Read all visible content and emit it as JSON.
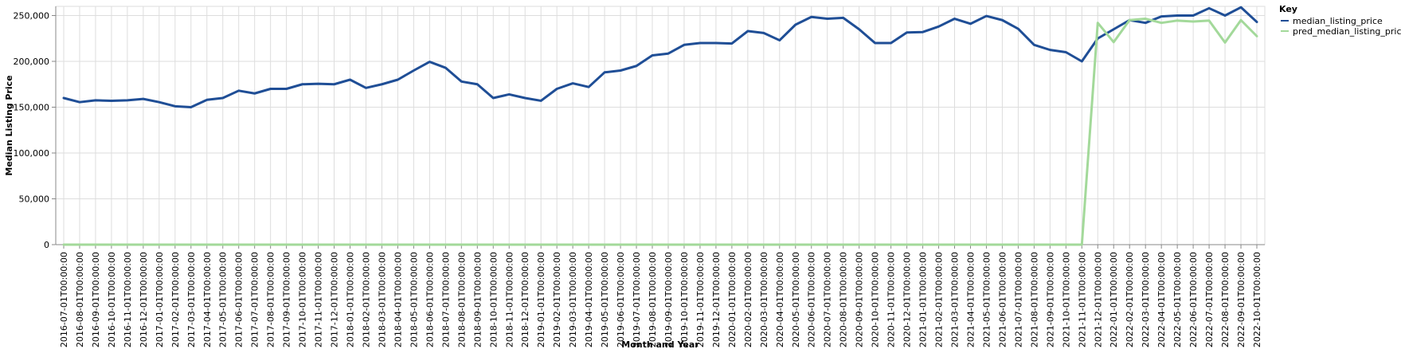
{
  "chart_data": {
    "type": "line",
    "xlabel": "Month and Year",
    "ylabel": "Median Listing Price",
    "ylim": [
      0,
      260000
    ],
    "yticks": [
      0,
      50000,
      100000,
      150000,
      200000,
      250000
    ],
    "ytick_labels": [
      "0",
      "50,000",
      "100,000",
      "150,000",
      "200,000",
      "250,000"
    ],
    "grid": true,
    "legend": {
      "title": "Key",
      "position": "top-right"
    },
    "x": [
      "2016-07-01T00:00:00",
      "2016-08-01T00:00:00",
      "2016-09-01T00:00:00",
      "2016-10-01T00:00:00",
      "2016-11-01T00:00:00",
      "2016-12-01T00:00:00",
      "2017-01-01T00:00:00",
      "2017-02-01T00:00:00",
      "2017-03-01T00:00:00",
      "2017-04-01T00:00:00",
      "2017-05-01T00:00:00",
      "2017-06-01T00:00:00",
      "2017-07-01T00:00:00",
      "2017-08-01T00:00:00",
      "2017-09-01T00:00:00",
      "2017-10-01T00:00:00",
      "2017-11-01T00:00:00",
      "2017-12-01T00:00:00",
      "2018-01-01T00:00:00",
      "2018-02-01T00:00:00",
      "2018-03-01T00:00:00",
      "2018-04-01T00:00:00",
      "2018-05-01T00:00:00",
      "2018-06-01T00:00:00",
      "2018-07-01T00:00:00",
      "2018-08-01T00:00:00",
      "2018-09-01T00:00:00",
      "2018-10-01T00:00:00",
      "2018-11-01T00:00:00",
      "2018-12-01T00:00:00",
      "2019-01-01T00:00:00",
      "2019-02-01T00:00:00",
      "2019-03-01T00:00:00",
      "2019-04-01T00:00:00",
      "2019-05-01T00:00:00",
      "2019-06-01T00:00:00",
      "2019-07-01T00:00:00",
      "2019-08-01T00:00:00",
      "2019-09-01T00:00:00",
      "2019-10-01T00:00:00",
      "2019-11-01T00:00:00",
      "2019-12-01T00:00:00",
      "2020-01-01T00:00:00",
      "2020-02-01T00:00:00",
      "2020-03-01T00:00:00",
      "2020-04-01T00:00:00",
      "2020-05-01T00:00:00",
      "2020-06-01T00:00:00",
      "2020-07-01T00:00:00",
      "2020-08-01T00:00:00",
      "2020-09-01T00:00:00",
      "2020-10-01T00:00:00",
      "2020-11-01T00:00:00",
      "2020-12-01T00:00:00",
      "2021-01-01T00:00:00",
      "2021-02-01T00:00:00",
      "2021-03-01T00:00:00",
      "2021-04-01T00:00:00",
      "2021-05-01T00:00:00",
      "2021-06-01T00:00:00",
      "2021-07-01T00:00:00",
      "2021-08-01T00:00:00",
      "2021-09-01T00:00:00",
      "2021-10-01T00:00:00",
      "2021-11-01T00:00:00",
      "2021-12-01T00:00:00",
      "2022-01-01T00:00:00",
      "2022-02-01T00:00:00",
      "2022-03-01T00:00:00",
      "2022-04-01T00:00:00",
      "2022-05-01T00:00:00",
      "2022-06-01T00:00:00",
      "2022-07-01T00:00:00",
      "2022-08-01T00:00:00",
      "2022-09-01T00:00:00",
      "2022-10-01T00:00:00"
    ],
    "series": [
      {
        "name": "median_listing_price",
        "color": "#1f4e96",
        "values": [
          160000,
          155500,
          157500,
          157000,
          157500,
          159000,
          155500,
          151000,
          150000,
          158000,
          160000,
          168000,
          165000,
          170000,
          170000,
          175000,
          175500,
          175000,
          180000,
          171000,
          175000,
          180000,
          190000,
          199500,
          193000,
          178000,
          175000,
          160000,
          164000,
          160000,
          157000,
          170000,
          176000,
          172000,
          188000,
          190000,
          195000,
          206500,
          208500,
          218000,
          220000,
          220000,
          219500,
          233000,
          231000,
          223000,
          240000,
          248500,
          246500,
          247500,
          235000,
          220000,
          220000,
          231500,
          232000,
          238000,
          246500,
          241000,
          249500,
          245000,
          235500,
          218000,
          212500,
          210000,
          200000,
          225000,
          235000,
          245000,
          242000,
          249000,
          250000,
          250000,
          258000,
          250000,
          259000,
          243000
        ]
      },
      {
        "name": "pred_median_listing_price",
        "color": "#a3d99a",
        "values": [
          0,
          0,
          0,
          0,
          0,
          0,
          0,
          0,
          0,
          0,
          0,
          0,
          0,
          0,
          0,
          0,
          0,
          0,
          0,
          0,
          0,
          0,
          0,
          0,
          0,
          0,
          0,
          0,
          0,
          0,
          0,
          0,
          0,
          0,
          0,
          0,
          0,
          0,
          0,
          0,
          0,
          0,
          0,
          0,
          0,
          0,
          0,
          0,
          0,
          0,
          0,
          0,
          0,
          0,
          0,
          0,
          0,
          0,
          0,
          0,
          0,
          0,
          0,
          0,
          0,
          242000,
          221000,
          245000,
          246500,
          242000,
          244500,
          243500,
          244500,
          220500,
          245000,
          227500
        ]
      }
    ]
  }
}
